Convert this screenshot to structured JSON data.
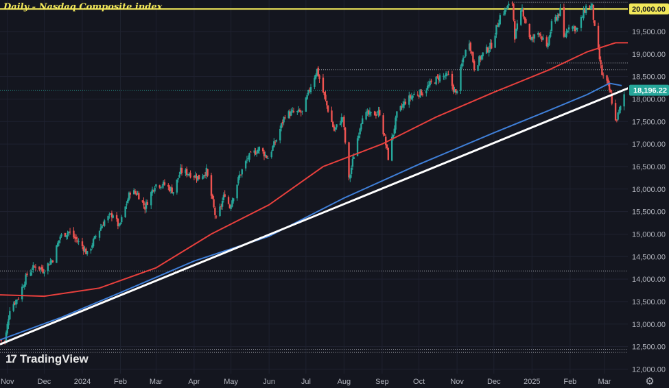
{
  "title": "Daily - Nasdaq Composite index",
  "logo_text": "TradingView",
  "settings_icon": "gear-icon",
  "chart_data": {
    "type": "candlestick",
    "title": "Daily - Nasdaq Composite index",
    "ylim": [
      11900,
      20200
    ],
    "x_range": [
      "2023-10-26",
      "2025-03-20"
    ],
    "y_ticks": [
      12000,
      12500,
      13000,
      13500,
      14000,
      14500,
      15000,
      15500,
      16000,
      16500,
      17000,
      17500,
      18000,
      18500,
      19000,
      19500,
      20000
    ],
    "y_tick_labels": [
      "12,000.00",
      "12,500.00",
      "13,000.00",
      "13,500.00",
      "14,000.00",
      "14,500.00",
      "15,000.00",
      "15,500.00",
      "16,000.00",
      "16,500.00",
      "17,000.00",
      "17,500.00",
      "18,000.00",
      "18,500.00",
      "19,000.00",
      "19,500.00",
      "20,000.00"
    ],
    "x_ticks": [
      {
        "label": "Nov",
        "date": "2023-11-01"
      },
      {
        "label": "Dec",
        "date": "2023-12-01"
      },
      {
        "label": "2024",
        "date": "2024-01-01"
      },
      {
        "label": "Feb",
        "date": "2024-02-01"
      },
      {
        "label": "Mar",
        "date": "2024-03-01"
      },
      {
        "label": "Apr",
        "date": "2024-04-01"
      },
      {
        "label": "May",
        "date": "2024-05-01"
      },
      {
        "label": "Jun",
        "date": "2024-06-01"
      },
      {
        "label": "Jul",
        "date": "2024-07-01"
      },
      {
        "label": "Aug",
        "date": "2024-08-01"
      },
      {
        "label": "Sep",
        "date": "2024-09-01"
      },
      {
        "label": "Oct",
        "date": "2024-10-01"
      },
      {
        "label": "Nov",
        "date": "2024-11-01"
      },
      {
        "label": "Dec",
        "date": "2024-12-01"
      },
      {
        "label": "2025",
        "date": "2025-01-01"
      },
      {
        "label": "Feb",
        "date": "2025-02-01"
      },
      {
        "label": "Mar",
        "date": "2025-03-01"
      }
    ],
    "price_path": [
      {
        "date": "2023-10-26",
        "close": 12650
      },
      {
        "date": "2023-10-30",
        "close": 12600
      },
      {
        "date": "2023-11-03",
        "close": 13350
      },
      {
        "date": "2023-11-10",
        "close": 13600
      },
      {
        "date": "2023-11-17",
        "close": 14100
      },
      {
        "date": "2023-11-24",
        "close": 14300
      },
      {
        "date": "2023-11-30",
        "close": 14200
      },
      {
        "date": "2023-12-08",
        "close": 14450
      },
      {
        "date": "2023-12-14",
        "close": 14950
      },
      {
        "date": "2023-12-21",
        "close": 15050
      },
      {
        "date": "2024-01-02",
        "close": 14700
      },
      {
        "date": "2024-01-05",
        "close": 14550
      },
      {
        "date": "2024-01-12",
        "close": 14950
      },
      {
        "date": "2024-01-19",
        "close": 15300
      },
      {
        "date": "2024-01-26",
        "close": 15450
      },
      {
        "date": "2024-01-31",
        "close": 15150
      },
      {
        "date": "2024-02-09",
        "close": 15950
      },
      {
        "date": "2024-02-15",
        "close": 15900
      },
      {
        "date": "2024-02-21",
        "close": 15600
      },
      {
        "date": "2024-02-29",
        "close": 16100
      },
      {
        "date": "2024-03-08",
        "close": 16100
      },
      {
        "date": "2024-03-15",
        "close": 15950
      },
      {
        "date": "2024-03-21",
        "close": 16400
      },
      {
        "date": "2024-03-28",
        "close": 16350
      },
      {
        "date": "2024-04-05",
        "close": 16250
      },
      {
        "date": "2024-04-11",
        "close": 16400
      },
      {
        "date": "2024-04-19",
        "close": 15300
      },
      {
        "date": "2024-04-26",
        "close": 15900
      },
      {
        "date": "2024-04-30",
        "close": 15600
      },
      {
        "date": "2024-05-08",
        "close": 16300
      },
      {
        "date": "2024-05-15",
        "close": 16700
      },
      {
        "date": "2024-05-24",
        "close": 16900
      },
      {
        "date": "2024-05-31",
        "close": 16700
      },
      {
        "date": "2024-06-07",
        "close": 17100
      },
      {
        "date": "2024-06-14",
        "close": 17650
      },
      {
        "date": "2024-06-21",
        "close": 17700
      },
      {
        "date": "2024-06-28",
        "close": 17700
      },
      {
        "date": "2024-07-05",
        "close": 18300
      },
      {
        "date": "2024-07-10",
        "close": 18650
      },
      {
        "date": "2024-07-17",
        "close": 17950
      },
      {
        "date": "2024-07-24",
        "close": 17300
      },
      {
        "date": "2024-07-31",
        "close": 17600
      },
      {
        "date": "2024-08-05",
        "close": 16200
      },
      {
        "date": "2024-08-09",
        "close": 16750
      },
      {
        "date": "2024-08-16",
        "close": 17650
      },
      {
        "date": "2024-08-22",
        "close": 17650
      },
      {
        "date": "2024-08-30",
        "close": 17700
      },
      {
        "date": "2024-09-06",
        "close": 16700
      },
      {
        "date": "2024-09-13",
        "close": 17650
      },
      {
        "date": "2024-09-20",
        "close": 17950
      },
      {
        "date": "2024-09-27",
        "close": 18100
      },
      {
        "date": "2024-10-04",
        "close": 18150
      },
      {
        "date": "2024-10-11",
        "close": 18350
      },
      {
        "date": "2024-10-18",
        "close": 18500
      },
      {
        "date": "2024-10-25",
        "close": 18500
      },
      {
        "date": "2024-10-31",
        "close": 18100
      },
      {
        "date": "2024-11-06",
        "close": 18900
      },
      {
        "date": "2024-11-11",
        "close": 19300
      },
      {
        "date": "2024-11-15",
        "close": 18700
      },
      {
        "date": "2024-11-22",
        "close": 19000
      },
      {
        "date": "2024-11-29",
        "close": 19200
      },
      {
        "date": "2024-12-06",
        "close": 19850
      },
      {
        "date": "2024-12-16",
        "close": 20150
      },
      {
        "date": "2024-12-18",
        "close": 19400
      },
      {
        "date": "2024-12-24",
        "close": 20000
      },
      {
        "date": "2024-12-31",
        "close": 19300
      },
      {
        "date": "2025-01-07",
        "close": 19500
      },
      {
        "date": "2025-01-13",
        "close": 19100
      },
      {
        "date": "2025-01-17",
        "close": 19650
      },
      {
        "date": "2025-01-24",
        "close": 19950
      },
      {
        "date": "2025-01-27",
        "close": 19350
      },
      {
        "date": "2025-01-31",
        "close": 19650
      },
      {
        "date": "2025-02-07",
        "close": 19550
      },
      {
        "date": "2025-02-14",
        "close": 20050
      },
      {
        "date": "2025-02-19",
        "close": 20050
      },
      {
        "date": "2025-02-21",
        "close": 19550
      },
      {
        "date": "2025-02-27",
        "close": 18550
      },
      {
        "date": "2025-03-03",
        "close": 18350
      },
      {
        "date": "2025-03-06",
        "close": 18100
      },
      {
        "date": "2025-03-10",
        "close": 17500
      },
      {
        "date": "2025-03-14",
        "close": 17800
      },
      {
        "date": "2025-03-18",
        "close": 18196.22
      }
    ],
    "series": [
      {
        "name": "",
        "color": "#e9403d",
        "points": [
          {
            "date": "2023-10-26",
            "value": 13650
          },
          {
            "date": "2023-12-01",
            "value": 13620
          },
          {
            "date": "2024-01-15",
            "value": 13800
          },
          {
            "date": "2024-03-01",
            "value": 14250
          },
          {
            "date": "2024-04-15",
            "value": 15000
          },
          {
            "date": "2024-06-01",
            "value": 15650
          },
          {
            "date": "2024-07-15",
            "value": 16500
          },
          {
            "date": "2024-09-01",
            "value": 17000
          },
          {
            "date": "2024-10-15",
            "value": 17600
          },
          {
            "date": "2024-12-01",
            "value": 18150
          },
          {
            "date": "2025-01-15",
            "value": 18650
          },
          {
            "date": "2025-02-15",
            "value": 19050
          },
          {
            "date": "2025-03-10",
            "value": 19250
          },
          {
            "date": "2025-03-20",
            "value": 19250
          }
        ]
      },
      {
        "name": "",
        "color": "#3f7fd8",
        "points": [
          {
            "date": "2023-10-26",
            "value": 12650
          },
          {
            "date": "2023-12-15",
            "value": 13150
          },
          {
            "date": "2024-02-01",
            "value": 13700
          },
          {
            "date": "2024-04-01",
            "value": 14400
          },
          {
            "date": "2024-06-01",
            "value": 14950
          },
          {
            "date": "2024-08-01",
            "value": 15800
          },
          {
            "date": "2024-10-01",
            "value": 16550
          },
          {
            "date": "2024-12-01",
            "value": 17250
          },
          {
            "date": "2025-01-15",
            "value": 17750
          },
          {
            "date": "2025-02-15",
            "value": 18100
          },
          {
            "date": "2025-03-05",
            "value": 18350
          },
          {
            "date": "2025-03-15",
            "value": 18300
          }
        ]
      }
    ],
    "trendline": {
      "color": "#ffffff",
      "start": {
        "date": "2023-10-26",
        "value": 12550
      },
      "end": {
        "date": "2025-03-22",
        "value": 18260
      }
    },
    "horizontal_levels": [
      {
        "value": 20000,
        "style": "solid",
        "color": "#f2e85a",
        "start_date": "2023-10-01",
        "label": "20,000.00"
      },
      {
        "value": 20150,
        "style": "dotted",
        "color": "#a0a3ab",
        "start_date": "2024-12-16"
      },
      {
        "value": 18800,
        "style": "dotted",
        "color": "#a0a3ab",
        "start_date": "2025-01-13"
      },
      {
        "value": 18650,
        "style": "dotted",
        "color": "#a0a3ab",
        "start_date": "2024-07-10"
      },
      {
        "value": 14180,
        "style": "dotted",
        "color": "#a0a3ab",
        "start_date": "2023-10-01"
      },
      {
        "value": 12440,
        "style": "dotted",
        "color": "#a0a3ab",
        "start_date": "2023-10-01"
      },
      {
        "value": 12370,
        "style": "dotted",
        "color": "#a0a3ab",
        "start_date": "2023-10-01"
      }
    ],
    "current_price": {
      "value": 18196.22,
      "label": "18,196.22",
      "color": "#26a69a"
    },
    "up_color": "#26a69a",
    "down_color": "#ef5350",
    "background": "#14161f",
    "grid": true
  }
}
